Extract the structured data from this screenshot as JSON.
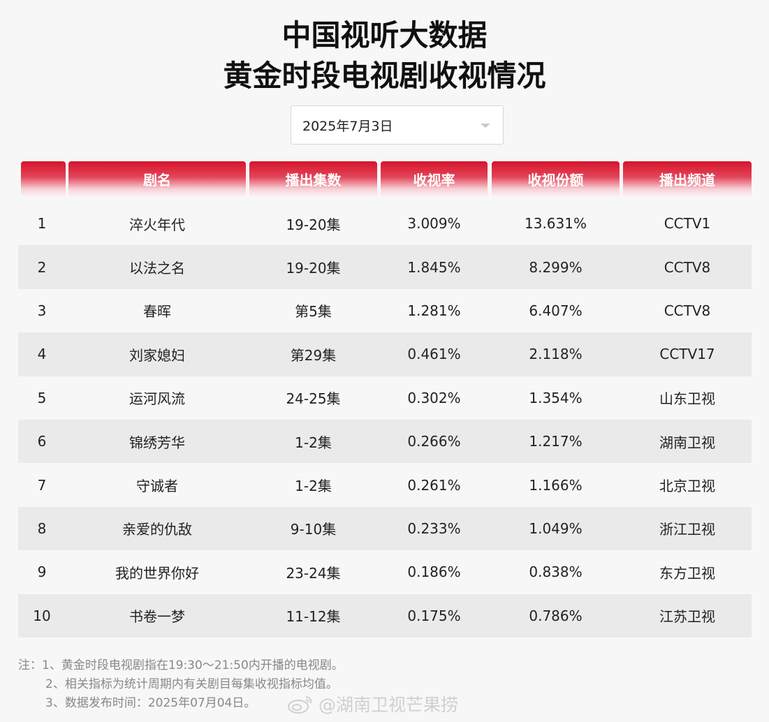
{
  "title_line1": "中国视听大数据",
  "title_line2": "黄金时段电视剧收视情况",
  "date_select": {
    "value": "2025年7月3日"
  },
  "columns": [
    "",
    "剧名",
    "播出集数",
    "收视率",
    "收视份额",
    "播出频道"
  ],
  "rows": [
    [
      "1",
      "淬火年代",
      "19-20集",
      "3.009%",
      "13.631%",
      "CCTV1"
    ],
    [
      "2",
      "以法之名",
      "19-20集",
      "1.845%",
      "8.299%",
      "CCTV8"
    ],
    [
      "3",
      "春晖",
      "第5集",
      "1.281%",
      "6.407%",
      "CCTV8"
    ],
    [
      "4",
      "刘家媳妇",
      "第29集",
      "0.461%",
      "2.118%",
      "CCTV17"
    ],
    [
      "5",
      "运河风流",
      "24-25集",
      "0.302%",
      "1.354%",
      "山东卫视"
    ],
    [
      "6",
      "锦绣芳华",
      "1-2集",
      "0.266%",
      "1.217%",
      "湖南卫视"
    ],
    [
      "7",
      "守诚者",
      "1-2集",
      "0.261%",
      "1.166%",
      "北京卫视"
    ],
    [
      "8",
      "亲爱的仇敌",
      "9-10集",
      "0.233%",
      "1.049%",
      "浙江卫视"
    ],
    [
      "9",
      "我的世界你好",
      "23-24集",
      "0.186%",
      "0.838%",
      "东方卫视"
    ],
    [
      "10",
      "书卷一梦",
      "11-12集",
      "0.175%",
      "0.786%",
      "江苏卫视"
    ]
  ],
  "notes": [
    "注：1、黄金时段电视剧指在19:30～21:50内开播的电视剧。",
    "2、相关指标为统计周期内有关剧目每集收视指标均值。",
    "3、数据发布时间：2025年07月04日。"
  ],
  "watermark": "@湖南卫视芒果捞",
  "colors": {
    "header_red": "#d6142a",
    "stripe": "#eaeaea",
    "background": "#f7f7f7"
  }
}
